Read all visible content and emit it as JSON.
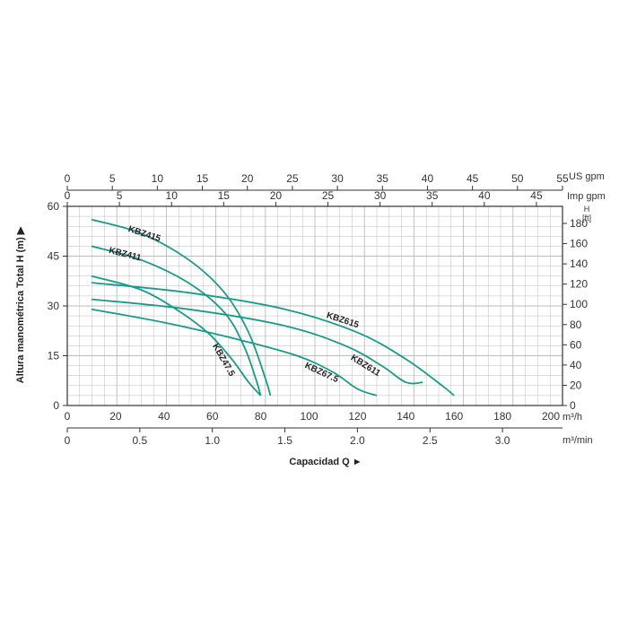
{
  "chart_data": {
    "type": "line",
    "ylabel": "Altura manométrica Total H (m) ▶",
    "xlabel": "Capacidad Q ►",
    "colors": {
      "curve": "#1a9a8a",
      "axis": "#333333",
      "grid": "#bbbbbb"
    },
    "axes": {
      "flow_m3h": {
        "unit": "m³/h",
        "range": [
          0,
          200
        ],
        "ticks": [
          0,
          20,
          40,
          60,
          80,
          100,
          120,
          140,
          160,
          180,
          200
        ]
      },
      "flow_m3min": {
        "unit": "m³/min",
        "ticks": [
          "0",
          "0.5",
          "1.0",
          "1.5",
          "2.0",
          "2.5",
          "3.0"
        ]
      },
      "us_gpm": {
        "unit": "US gpm",
        "ticks": [
          "0",
          "5",
          "10",
          "15",
          "20",
          "25",
          "30",
          "35",
          "40",
          "45",
          "50",
          "55"
        ]
      },
      "imp_gpm": {
        "unit": "Imp gpm",
        "ticks": [
          "0",
          "5",
          "10",
          "15",
          "20",
          "25",
          "30",
          "35",
          "40",
          "45"
        ]
      },
      "head_m": {
        "unit": "m",
        "range": [
          0,
          60
        ],
        "ticks": [
          0,
          15,
          30,
          45,
          60
        ]
      },
      "head_ft": {
        "unit_top": "H",
        "unit": "[ft]",
        "ticks": [
          "0",
          "20",
          "40",
          "60",
          "80",
          "100",
          "120",
          "140",
          "160",
          "180"
        ]
      }
    },
    "series": [
      {
        "name": "KBZ415",
        "x": [
          10,
          30,
          50,
          65,
          75,
          82,
          84
        ],
        "y": [
          56,
          52,
          44,
          34,
          22,
          8,
          3
        ]
      },
      {
        "name": "KBZ411",
        "x": [
          10,
          30,
          50,
          65,
          73,
          78,
          80
        ],
        "y": [
          48,
          44,
          37,
          28,
          18,
          8,
          3
        ]
      },
      {
        "name": "KBZ47.5",
        "x": [
          10,
          30,
          45,
          58,
          68,
          75,
          80
        ],
        "y": [
          39,
          35,
          29,
          22,
          14,
          7,
          3
        ]
      },
      {
        "name": "KBZ615",
        "x": [
          10,
          50,
          90,
          120,
          140,
          155,
          160
        ],
        "y": [
          37,
          34,
          29,
          22,
          14,
          6,
          3
        ]
      },
      {
        "name": "KBZ611",
        "x": [
          10,
          50,
          90,
          115,
          130,
          140,
          147
        ],
        "y": [
          32,
          29,
          24,
          18,
          12,
          7,
          7
        ]
      },
      {
        "name": "KBZ67.5",
        "x": [
          10,
          40,
          70,
          95,
          110,
          120,
          128
        ],
        "y": [
          29,
          25,
          20,
          15,
          10,
          5,
          3
        ]
      }
    ]
  }
}
